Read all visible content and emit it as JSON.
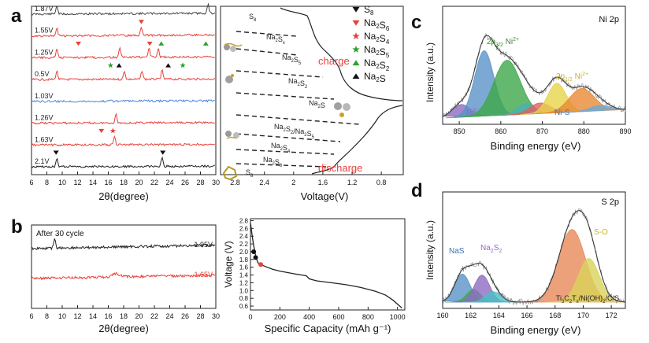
{
  "panel_letters": [
    "a",
    "b",
    "c",
    "d"
  ],
  "chart_data": [
    {
      "id": "a-xrd",
      "type": "line",
      "xlabel": "2θ(degree)",
      "xlim": [
        6,
        30
      ],
      "xticks": [
        6,
        8,
        10,
        12,
        14,
        16,
        18,
        20,
        22,
        24,
        26,
        28,
        30
      ],
      "series": [
        {
          "name": "1.87V",
          "color": "#444444",
          "peaks": [
            9.3,
            29
          ]
        },
        {
          "name": "1.55V",
          "color": "#e8413a",
          "peaks": [
            9.3,
            20.3
          ]
        },
        {
          "name": "1.25V",
          "color": "#e8413a",
          "peaks": [
            9.3,
            17.5,
            21.3,
            22.5
          ]
        },
        {
          "name": "0.5V",
          "color": "#e8413a",
          "peaks": [
            9.3,
            18.1,
            20.4,
            23
          ]
        },
        {
          "name": "1.03V",
          "color": "#4a86d8",
          "peaks": []
        },
        {
          "name": "1.26V",
          "color": "#e8413a",
          "peaks": [
            17
          ]
        },
        {
          "name": "1.63V",
          "color": "#e8413a",
          "peaks": [
            16.8
          ]
        },
        {
          "name": "2.1V",
          "color": "#222222",
          "peaks": [
            9.3,
            23
          ]
        }
      ],
      "markers": [
        {
          "row": 1,
          "x": 20.3,
          "shape": "tri-down",
          "color": "#e8413a"
        },
        {
          "row": 2,
          "x": 12.1,
          "shape": "tri-down",
          "color": "#e8413a"
        },
        {
          "row": 2,
          "x": 21.4,
          "shape": "tri-down",
          "color": "#e8413a"
        },
        {
          "row": 2,
          "x": 22.9,
          "shape": "tri-up",
          "color": "#2ca02c"
        },
        {
          "row": 2,
          "x": 28.7,
          "shape": "tri-up",
          "color": "#2ca02c"
        },
        {
          "row": 3,
          "x": 16.3,
          "shape": "star",
          "color": "#2ca02c"
        },
        {
          "row": 3,
          "x": 25.7,
          "shape": "star",
          "color": "#2ca02c"
        },
        {
          "row": 3,
          "x": 17.4,
          "shape": "tri-up",
          "color": "#111111"
        },
        {
          "row": 3,
          "x": 23.8,
          "shape": "tri-up",
          "color": "#111111"
        },
        {
          "row": 6,
          "x": 15.1,
          "shape": "tri-down",
          "color": "#e8413a"
        },
        {
          "row": 6,
          "x": 16.6,
          "shape": "star",
          "color": "#e8413a"
        },
        {
          "row": 7,
          "x": 9.2,
          "shape": "tri-down",
          "color": "#111111"
        },
        {
          "row": 7,
          "x": 23.1,
          "shape": "tri-down",
          "color": "#111111"
        }
      ]
    },
    {
      "id": "a-voltage",
      "type": "line",
      "xlabel": "Voltage(V)",
      "xlim": [
        3.0,
        0.5
      ],
      "xticks": [
        2.8,
        2.4,
        2.0,
        1.6,
        1.2,
        0.8
      ],
      "charge_label": "charge",
      "discharge_label": "discharge",
      "phase_labels": [
        {
          "sym": "S",
          "sub": "8"
        },
        {
          "sym": "Na",
          "sub": "2",
          "sym2": "S",
          "sub2": "x"
        },
        {
          "sym": "Na",
          "sub": "2",
          "sym2": "S",
          "sub2": "5"
        },
        {
          "sym": "Na",
          "sub": "2",
          "sym2": "S",
          "sub2": "2"
        },
        {
          "sym": "Na",
          "sub": "2",
          "sym2": "S",
          "sub2": ""
        },
        {
          "sym": "Na",
          "sub": "2",
          "sym2": "S",
          "sub2": "2",
          "tail": "/Na",
          "tailsub": "2",
          "sym3": "S",
          "sub3": "5"
        },
        {
          "sym": "Na",
          "sub": "2",
          "sym2": "S",
          "sub2": "4"
        },
        {
          "sym": "Na",
          "sub": "2",
          "sym2": "S",
          "sub2": "6"
        },
        {
          "sym": "S",
          "sub": "8"
        }
      ],
      "legend": [
        {
          "shape": "tri-down",
          "color": "#111111",
          "sym": "S",
          "sub": "8",
          "sym2": "",
          "sub2": ""
        },
        {
          "shape": "tri-down",
          "color": "#e8413a",
          "sym": "Na",
          "sub": "2",
          "sym2": "S",
          "sub2": "6"
        },
        {
          "shape": "star",
          "color": "#e8413a",
          "sym": "Na",
          "sub": "2",
          "sym2": "S",
          "sub2": "4"
        },
        {
          "shape": "star",
          "color": "#2ca02c",
          "sym": "Na",
          "sub": "2",
          "sym2": "S",
          "sub2": "5"
        },
        {
          "shape": "tri-up",
          "color": "#2ca02c",
          "sym": "Na",
          "sub": "2",
          "sym2": "S",
          "sub2": "2"
        },
        {
          "shape": "tri-up",
          "color": "#111111",
          "sym": "Na",
          "sub": "2",
          "sym2": "S",
          "sub2": ""
        }
      ]
    },
    {
      "id": "b-xrd",
      "type": "line",
      "xlabel": "2θ(degree)",
      "xlim": [
        6,
        30
      ],
      "xticks": [
        6,
        8,
        10,
        12,
        14,
        16,
        18,
        20,
        22,
        24,
        26,
        28,
        30
      ],
      "annotation": "After 30 cycle",
      "series": [
        {
          "name": "1.95V",
          "color": "#222222",
          "peaks": [
            9
          ]
        },
        {
          "name": "1.65V",
          "color": "#e8413a",
          "peaks": [
            17
          ]
        }
      ]
    },
    {
      "id": "b-discharge",
      "type": "line",
      "xlabel": "Specific Capacity (mAh g⁻¹)",
      "ylabel": "Voltage (V)",
      "xlim": [
        0,
        1050
      ],
      "ylim": [
        0.5,
        2.85
      ],
      "xticks": [
        0,
        200,
        400,
        600,
        800,
        1000
      ],
      "yticks": [
        0.6,
        0.8,
        1.0,
        1.2,
        1.4,
        1.6,
        1.8,
        2.0,
        2.2,
        2.4,
        2.6,
        2.8
      ],
      "x": [
        0,
        10,
        20,
        35,
        50,
        70,
        100,
        150,
        200,
        300,
        380,
        400,
        450,
        550,
        650,
        750,
        850,
        920,
        970,
        1000,
        1030
      ],
      "y": [
        2.75,
        2.45,
        2.2,
        1.9,
        1.72,
        1.67,
        1.62,
        1.55,
        1.5,
        1.43,
        1.38,
        1.3,
        1.25,
        1.2,
        1.15,
        1.08,
        0.98,
        0.88,
        0.75,
        0.65,
        0.55
      ],
      "points": [
        {
          "x": 22,
          "y": 2.0,
          "color": "#111111"
        },
        {
          "x": 35,
          "y": 1.85,
          "color": "#111111"
        },
        {
          "x": 70,
          "y": 1.67,
          "color": "#e8413a"
        }
      ]
    },
    {
      "id": "c-ni2p",
      "type": "area",
      "title": "Ni 2p",
      "xlabel": "Binding energy (eV)",
      "ylabel": "Intensity (a.u.)",
      "xlim": [
        846,
        890
      ],
      "xticks": [
        850,
        860,
        870,
        880,
        890
      ],
      "peaks": [
        {
          "center": 850.5,
          "width": 2.2,
          "height": 0.12,
          "color": "#8e6cc2"
        },
        {
          "center": 856.0,
          "width": 2.3,
          "height": 0.62,
          "color": "#5a93c8"
        },
        {
          "center": 861.5,
          "width": 3.2,
          "height": 0.52,
          "color": "#3fa84a"
        },
        {
          "center": 866.0,
          "width": 2.0,
          "height": 0.1,
          "color": "#48b0b8"
        },
        {
          "center": 869.5,
          "width": 2.5,
          "height": 0.1,
          "color": "#e1615a"
        },
        {
          "center": 873.5,
          "width": 2.2,
          "height": 0.28,
          "color": "#e6d44a"
        },
        {
          "center": 879.5,
          "width": 3.0,
          "height": 0.22,
          "color": "#e98a35"
        },
        {
          "center": 884.0,
          "width": 2.5,
          "height": 0.05,
          "color": "#6aaad8"
        }
      ],
      "labels": {
        "p32": {
          "a": "2p",
          "b": "3/2",
          "c": " Ni",
          "d": "2+"
        },
        "p12": {
          "a": "2p",
          "b": "1/2",
          "c": " Ni",
          "d": "2+"
        },
        "ni0": {
          "a": "Ni",
          "b": "0"
        },
        "nis": "Ni-S"
      }
    },
    {
      "id": "d-s2p",
      "type": "area",
      "title": "S 2p",
      "xlabel": "Binding energy (eV)",
      "ylabel": "Intensity (a.u.)",
      "xlim": [
        160,
        173
      ],
      "xticks": [
        160,
        162,
        164,
        166,
        168,
        170,
        172
      ],
      "peaks": [
        {
          "center": 161.4,
          "width": 0.55,
          "height": 0.27,
          "color": "#5a93c8"
        },
        {
          "center": 162.2,
          "width": 0.5,
          "height": 0.12,
          "color": "#3fa84a"
        },
        {
          "center": 162.8,
          "width": 0.55,
          "height": 0.26,
          "color": "#8e6cc2"
        },
        {
          "center": 163.6,
          "width": 0.55,
          "height": 0.1,
          "color": "#48c0c8"
        },
        {
          "center": 169.2,
          "width": 0.95,
          "height": 0.7,
          "color": "#e98a5a"
        },
        {
          "center": 170.4,
          "width": 0.75,
          "height": 0.42,
          "color": "#d9d35a"
        }
      ],
      "labels": {
        "nas": "NaS",
        "na2s2": {
          "a": "Na",
          "b": "2",
          "c": "S",
          "d": "2"
        },
        "so": "S-O",
        "sample": {
          "a": "Ti",
          "b": "3",
          "c": "C",
          "d": "2",
          "e": "T",
          "f": "x",
          "g": "/Ni(OH)",
          "h": "2",
          "i": "/C/S"
        }
      }
    }
  ]
}
